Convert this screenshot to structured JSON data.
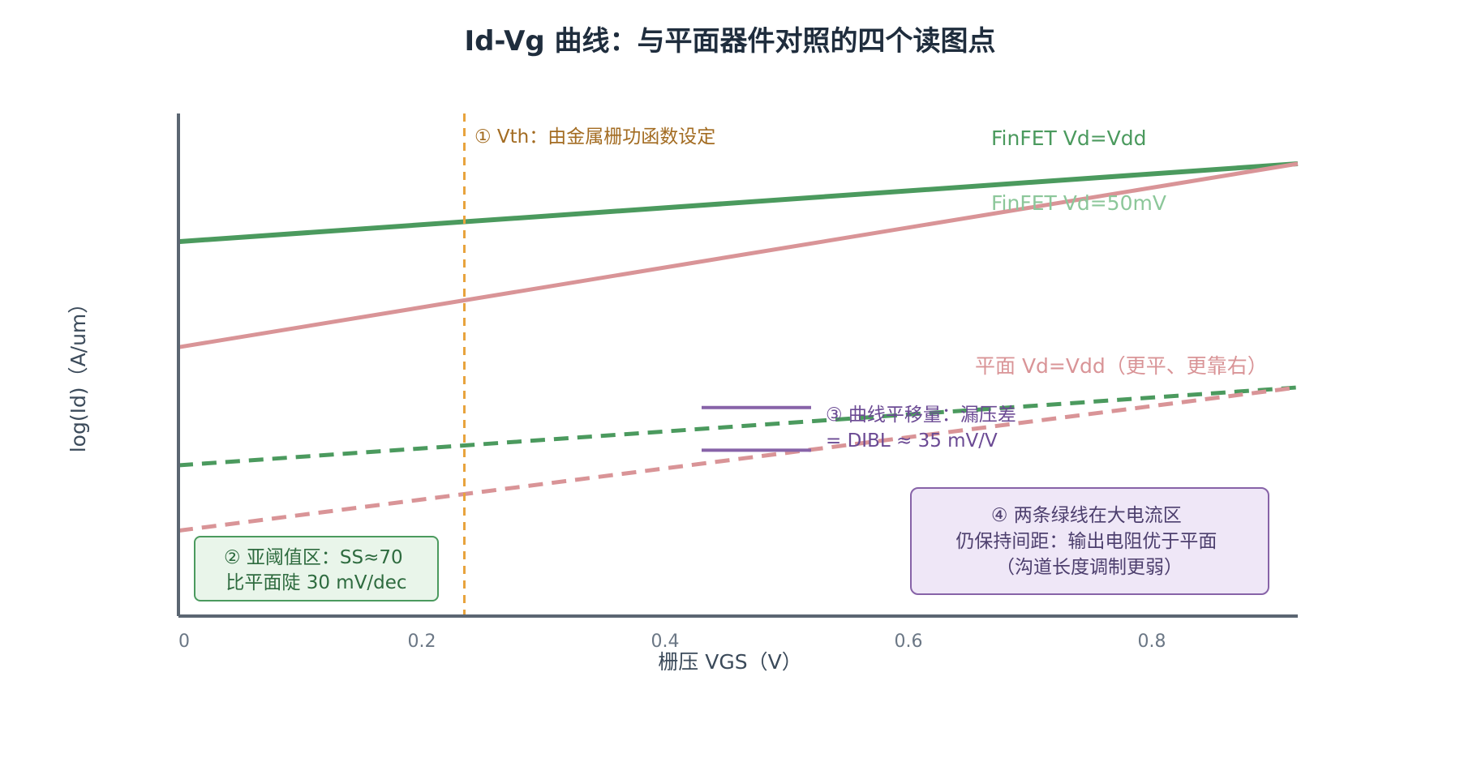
{
  "chart_data": {
    "type": "line",
    "title": "Id-Vg 曲线：与平面器件对照的四个读图点",
    "xlabel": "栅压 VGS（V）",
    "ylabel": "log(Id)（A/um）",
    "xlim": [
      0,
      0.92
    ],
    "ylim": [
      0,
      1
    ],
    "x_ticks": [
      0,
      0.2,
      0.4,
      0.6,
      0.8
    ],
    "x_tick_labels": [
      "0",
      "0.2",
      "0.4",
      "0.6",
      "0.8"
    ],
    "y_ticks_shown": false,
    "grid": false,
    "series": [
      {
        "name": "FinFET Vd=Vdd",
        "x": [
          0,
          0.92
        ],
        "y": [
          0.745,
          0.9
        ],
        "color": "#4b9a5e",
        "style": "solid",
        "width": 6
      },
      {
        "name": "FinFET Vd=50mV",
        "x": [
          0,
          0.92
        ],
        "y": [
          0.3,
          0.455
        ],
        "color": "#4b9a5e",
        "style": "dashed",
        "width": 5,
        "label_color": "#8cc79a"
      },
      {
        "name": "平面 Vd=Vdd（更平、更靠右）",
        "x": [
          0,
          0.92
        ],
        "y": [
          0.535,
          0.9
        ],
        "color": "#d99497",
        "style": "solid",
        "width": 5
      },
      {
        "name": "",
        "x": [
          0,
          0.92
        ],
        "y": [
          0.17,
          0.455
        ],
        "color": "#d99497",
        "style": "dashed",
        "width": 5
      }
    ],
    "vline": {
      "x": 0.235,
      "color": "#e8a33d"
    },
    "dibl_marker": {
      "x_range": [
        0.43,
        0.52
      ],
      "y_values": [
        0.415,
        0.33
      ],
      "color": "#8763a8"
    },
    "annotations": {
      "vth": {
        "text": "① Vth：由金属栅功函数设定",
        "color": "#a36c22"
      },
      "ss": {
        "lines": [
          "② 亚阈值区：SS≈70",
          "比平面陡 30 mV/dec"
        ],
        "color": "#2e6b3f",
        "fill": "#e9f5ea",
        "stroke": "#4b9a5e"
      },
      "dibl": {
        "lines": [
          "③ 曲线平移量：漏压差",
          "= DIBL ≈ 35 mV/V"
        ],
        "color": "#6b4a94"
      },
      "rout": {
        "lines": [
          "④ 两条绿线在大电流区",
          "仍保持间距：输出电阻优于平面",
          "（沟道长度调制更弱）"
        ],
        "color": "#4d3f6e",
        "fill": "#efe7f7",
        "stroke": "#8763a8"
      }
    }
  }
}
